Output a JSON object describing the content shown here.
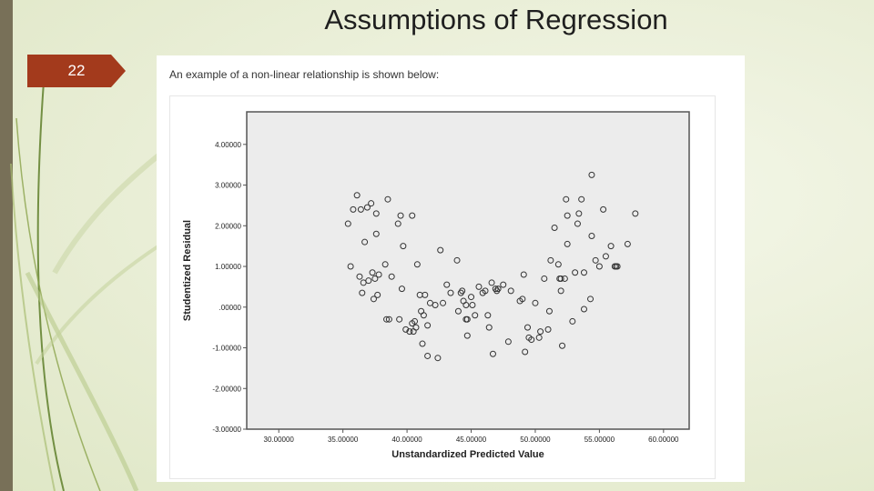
{
  "slide": {
    "title": "Assumptions of Regression",
    "number": "22"
  },
  "intro_text": "An example of a non-linear relationship is shown below:",
  "colors": {
    "side_bar": "#787058",
    "number_tab": "#a33a1c",
    "plot_background": "#ececec",
    "marker": "#333333"
  },
  "chart_data": {
    "type": "scatter",
    "title": "",
    "xlabel": "Unstandardized Predicted Value",
    "ylabel": "Studentized Residual",
    "xlim": [
      27.5,
      62
    ],
    "ylim": [
      -3.0,
      4.8
    ],
    "xticks": [
      30,
      35,
      40,
      45,
      50,
      55,
      60
    ],
    "xtick_labels": [
      "30.00000",
      "35.00000",
      "40.00000",
      "45.00000",
      "50.00000",
      "55.00000",
      "60.00000"
    ],
    "yticks": [
      4,
      3,
      2,
      1,
      0,
      -1,
      -2,
      -3
    ],
    "ytick_labels": [
      "4.00000",
      "3.00000",
      "2.00000",
      "1.00000",
      ".00000",
      "-1.00000",
      "-2.00000",
      "-3.00000"
    ],
    "grid": false,
    "marker": "open-circle",
    "points": [
      [
        35.4,
        2.05
      ],
      [
        35.6,
        1.0
      ],
      [
        35.8,
        2.4
      ],
      [
        36.1,
        2.75
      ],
      [
        36.3,
        0.75
      ],
      [
        36.4,
        2.4
      ],
      [
        36.5,
        0.35
      ],
      [
        36.6,
        0.6
      ],
      [
        36.7,
        1.6
      ],
      [
        36.9,
        2.45
      ],
      [
        37.0,
        0.65
      ],
      [
        37.2,
        2.55
      ],
      [
        37.3,
        0.85
      ],
      [
        37.4,
        0.2
      ],
      [
        37.5,
        0.7
      ],
      [
        37.6,
        1.8
      ],
      [
        37.6,
        2.3
      ],
      [
        37.7,
        0.3
      ],
      [
        37.8,
        0.8
      ],
      [
        38.3,
        1.05
      ],
      [
        38.4,
        -0.3
      ],
      [
        38.5,
        2.65
      ],
      [
        38.6,
        -0.3
      ],
      [
        38.8,
        0.75
      ],
      [
        39.3,
        2.05
      ],
      [
        39.4,
        -0.3
      ],
      [
        39.5,
        2.25
      ],
      [
        39.6,
        0.45
      ],
      [
        39.7,
        1.5
      ],
      [
        39.9,
        -0.55
      ],
      [
        40.2,
        -0.6
      ],
      [
        40.4,
        -0.4
      ],
      [
        40.4,
        2.25
      ],
      [
        40.5,
        -0.6
      ],
      [
        40.6,
        -0.35
      ],
      [
        40.7,
        -0.5
      ],
      [
        40.8,
        1.05
      ],
      [
        41.0,
        0.3
      ],
      [
        41.1,
        -0.1
      ],
      [
        41.2,
        -0.9
      ],
      [
        41.3,
        -0.2
      ],
      [
        41.4,
        0.3
      ],
      [
        41.6,
        -0.45
      ],
      [
        41.6,
        -1.2
      ],
      [
        41.8,
        0.1
      ],
      [
        42.2,
        0.05
      ],
      [
        42.4,
        -1.25
      ],
      [
        42.6,
        1.4
      ],
      [
        42.8,
        0.1
      ],
      [
        43.1,
        0.55
      ],
      [
        43.4,
        0.35
      ],
      [
        43.9,
        1.15
      ],
      [
        44.0,
        -0.1
      ],
      [
        44.2,
        0.35
      ],
      [
        44.3,
        0.4
      ],
      [
        44.4,
        0.15
      ],
      [
        44.6,
        -0.3
      ],
      [
        44.6,
        0.05
      ],
      [
        44.7,
        -0.7
      ],
      [
        44.7,
        -0.3
      ],
      [
        45.0,
        0.25
      ],
      [
        45.1,
        0.05
      ],
      [
        45.3,
        -0.2
      ],
      [
        45.6,
        0.5
      ],
      [
        45.9,
        0.35
      ],
      [
        46.1,
        0.4
      ],
      [
        46.3,
        -0.2
      ],
      [
        46.4,
        -0.5
      ],
      [
        46.6,
        0.6
      ],
      [
        46.7,
        -1.15
      ],
      [
        46.9,
        0.45
      ],
      [
        47.0,
        0.4
      ],
      [
        47.1,
        0.45
      ],
      [
        47.5,
        0.55
      ],
      [
        47.9,
        -0.85
      ],
      [
        48.1,
        0.4
      ],
      [
        48.8,
        0.15
      ],
      [
        49.0,
        0.2
      ],
      [
        49.1,
        0.8
      ],
      [
        49.2,
        -1.1
      ],
      [
        49.4,
        -0.5
      ],
      [
        49.5,
        -0.75
      ],
      [
        49.7,
        -0.8
      ],
      [
        50.0,
        0.1
      ],
      [
        50.3,
        -0.75
      ],
      [
        50.4,
        -0.6
      ],
      [
        50.7,
        0.7
      ],
      [
        51.0,
        -0.55
      ],
      [
        51.1,
        -0.1
      ],
      [
        51.2,
        1.15
      ],
      [
        51.5,
        1.95
      ],
      [
        51.8,
        1.05
      ],
      [
        51.9,
        0.7
      ],
      [
        52.0,
        0.7
      ],
      [
        52.0,
        0.4
      ],
      [
        52.1,
        -0.95
      ],
      [
        52.3,
        0.7
      ],
      [
        52.4,
        2.65
      ],
      [
        52.5,
        1.55
      ],
      [
        52.5,
        2.25
      ],
      [
        52.9,
        -0.35
      ],
      [
        53.1,
        0.85
      ],
      [
        53.3,
        2.05
      ],
      [
        53.4,
        2.3
      ],
      [
        53.6,
        2.65
      ],
      [
        53.8,
        0.85
      ],
      [
        53.8,
        -0.05
      ],
      [
        54.3,
        0.2
      ],
      [
        54.4,
        3.25
      ],
      [
        54.4,
        1.75
      ],
      [
        54.7,
        1.15
      ],
      [
        55.0,
        1.0
      ],
      [
        55.3,
        2.4
      ],
      [
        55.5,
        1.25
      ],
      [
        55.9,
        1.5
      ],
      [
        56.2,
        1.0
      ],
      [
        56.3,
        1.0
      ],
      [
        56.4,
        1.0
      ],
      [
        57.2,
        1.55
      ],
      [
        57.8,
        2.3
      ]
    ]
  }
}
